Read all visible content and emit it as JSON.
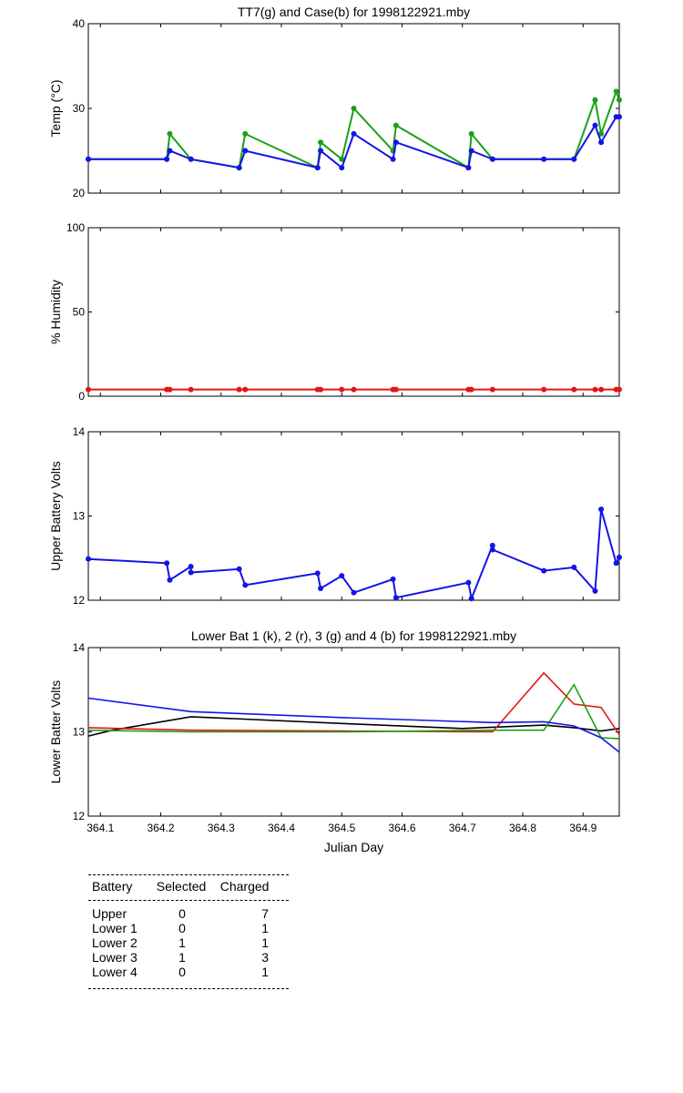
{
  "chart_data": [
    {
      "type": "line",
      "title": "TT7(g) and Case(b) for 1998122921.mby",
      "xlabel": "",
      "ylabel": "Temp  (°C)",
      "xlim": [
        364.08,
        364.96
      ],
      "ylim": [
        20,
        40
      ],
      "yticks": [
        20,
        30,
        40
      ],
      "grid": false,
      "series": [
        {
          "color": "#1aa01a",
          "x": [
            364.08,
            364.21,
            364.215,
            364.25,
            364.33,
            364.34,
            364.46,
            364.465,
            364.5,
            364.52,
            364.585,
            364.59,
            364.71,
            364.715,
            364.75,
            364.835,
            364.885,
            364.92,
            364.93,
            364.955,
            364.96
          ],
          "y": [
            24,
            24,
            27,
            24,
            23,
            27,
            23,
            26,
            24,
            30,
            25,
            28,
            23,
            27,
            24,
            24,
            24,
            31,
            27,
            32,
            31
          ]
        },
        {
          "color": "#1414e6",
          "x": [
            364.08,
            364.21,
            364.215,
            364.25,
            364.33,
            364.34,
            364.46,
            364.465,
            364.5,
            364.52,
            364.585,
            364.59,
            364.71,
            364.715,
            364.75,
            364.835,
            364.885,
            364.92,
            364.93,
            364.955,
            364.96
          ],
          "y": [
            24,
            24,
            25,
            24,
            23,
            25,
            23,
            25,
            23,
            27,
            24,
            26,
            23,
            25,
            24,
            24,
            24,
            28,
            26,
            29,
            29
          ]
        }
      ]
    },
    {
      "type": "line",
      "title": "",
      "xlabel": "",
      "ylabel": "% Humidity",
      "xlim": [
        364.08,
        364.96
      ],
      "ylim": [
        0,
        100
      ],
      "yticks": [
        0,
        50,
        100
      ],
      "grid": false,
      "series": [
        {
          "color": "#e61414",
          "x": [
            364.08,
            364.21,
            364.215,
            364.25,
            364.33,
            364.34,
            364.46,
            364.465,
            364.5,
            364.52,
            364.585,
            364.59,
            364.71,
            364.715,
            364.75,
            364.835,
            364.885,
            364.92,
            364.93,
            364.955,
            364.96
          ],
          "y": [
            4,
            4,
            4,
            4,
            4,
            4,
            4,
            4,
            4,
            4,
            4,
            4,
            4,
            4,
            4,
            4,
            4,
            4,
            4,
            4,
            4
          ]
        }
      ]
    },
    {
      "type": "line",
      "title": "",
      "xlabel": "",
      "ylabel": "Upper Battery Volts",
      "xlim": [
        364.08,
        364.96
      ],
      "ylim": [
        12,
        14
      ],
      "yticks": [
        12,
        13,
        14
      ],
      "grid": false,
      "series": [
        {
          "color": "#1414e6",
          "x": [
            364.08,
            364.21,
            364.215,
            364.25,
            364.25,
            364.33,
            364.34,
            364.46,
            364.465,
            364.5,
            364.52,
            364.585,
            364.59,
            364.71,
            364.715,
            364.75,
            364.75,
            364.835,
            364.885,
            364.92,
            364.93,
            364.955,
            364.96
          ],
          "y": [
            12.49,
            12.44,
            12.24,
            12.4,
            12.33,
            12.37,
            12.18,
            12.32,
            12.14,
            12.29,
            12.09,
            12.25,
            12.03,
            12.21,
            12.02,
            12.65,
            12.6,
            12.35,
            12.39,
            12.11,
            13.08,
            12.44,
            12.51
          ]
        }
      ]
    },
    {
      "type": "line",
      "title": "Lower Bat 1 (k), 2 (r), 3 (g) and 4 (b) for 1998122921.mby",
      "xlabel": "Julian Day",
      "ylabel": "Lower Batter Volts",
      "xlim": [
        364.08,
        364.96
      ],
      "ylim": [
        12,
        14
      ],
      "yticks": [
        12,
        13,
        14
      ],
      "xticks": [
        "364.1",
        "364.2",
        "364.3",
        "364.4",
        "364.5",
        "364.6",
        "364.7",
        "364.8",
        "364.9"
      ],
      "grid": false,
      "series": [
        {
          "color": "#000000",
          "x": [
            364.08,
            364.12,
            364.25,
            364.5,
            364.7,
            364.835,
            364.885,
            364.93,
            364.96
          ],
          "y": [
            12.95,
            13.02,
            13.18,
            13.1,
            13.04,
            13.08,
            13.05,
            13.01,
            13.04
          ]
        },
        {
          "color": "#e61414",
          "x": [
            364.08,
            364.25,
            364.5,
            364.75,
            364.835,
            364.885,
            364.93,
            364.96
          ],
          "y": [
            13.05,
            13.02,
            13.01,
            13.0,
            13.7,
            13.33,
            13.29,
            12.97
          ]
        },
        {
          "color": "#1aa01a",
          "x": [
            364.08,
            364.25,
            364.5,
            364.75,
            364.835,
            364.885,
            364.93,
            364.96
          ],
          "y": [
            13.02,
            13.0,
            13.0,
            13.02,
            13.02,
            13.56,
            12.93,
            12.92
          ]
        },
        {
          "color": "#1414e6",
          "x": [
            364.08,
            364.25,
            364.5,
            364.75,
            364.835,
            364.885,
            364.93,
            364.96
          ],
          "y": [
            13.4,
            13.24,
            13.17,
            13.11,
            13.12,
            13.07,
            12.93,
            12.76
          ]
        }
      ]
    }
  ],
  "summary_table": {
    "headers": [
      "Battery",
      "Selected",
      "Charged"
    ],
    "rows": [
      [
        "Upper",
        "0",
        "7"
      ],
      [
        "Lower 1",
        "0",
        "1"
      ],
      [
        "Lower 2",
        "1",
        "1"
      ],
      [
        "Lower 3",
        "1",
        "3"
      ],
      [
        "Lower 4",
        "0",
        "1"
      ]
    ]
  }
}
